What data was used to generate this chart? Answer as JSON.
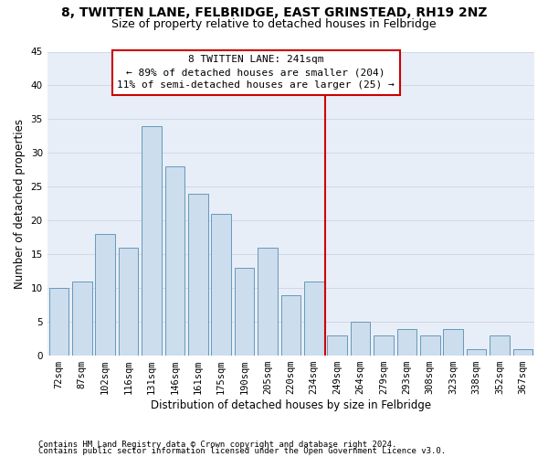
{
  "title1": "8, TWITTEN LANE, FELBRIDGE, EAST GRINSTEAD, RH19 2NZ",
  "title2": "Size of property relative to detached houses in Felbridge",
  "xlabel": "Distribution of detached houses by size in Felbridge",
  "ylabel": "Number of detached properties",
  "categories": [
    "72sqm",
    "87sqm",
    "102sqm",
    "116sqm",
    "131sqm",
    "146sqm",
    "161sqm",
    "175sqm",
    "190sqm",
    "205sqm",
    "220sqm",
    "234sqm",
    "249sqm",
    "264sqm",
    "279sqm",
    "293sqm",
    "308sqm",
    "323sqm",
    "338sqm",
    "352sqm",
    "367sqm"
  ],
  "values": [
    10,
    11,
    18,
    16,
    34,
    28,
    24,
    21,
    13,
    16,
    9,
    11,
    3,
    5,
    3,
    4,
    3,
    4,
    1,
    3,
    1
  ],
  "bar_color": "#ccdded",
  "bar_edge_color": "#6699bb",
  "vline_x": 11.5,
  "vline_color": "#cc0000",
  "annotation_text": "8 TWITTEN LANE: 241sqm\n← 89% of detached houses are smaller (204)\n11% of semi-detached houses are larger (25) →",
  "annotation_box_edge_color": "#cc0000",
  "annotation_box_face_color": "#ffffff",
  "grid_color": "#d0d8e8",
  "plot_bg_color": "#e8eef8",
  "ylim": [
    0,
    45
  ],
  "yticks": [
    0,
    5,
    10,
    15,
    20,
    25,
    30,
    35,
    40,
    45
  ],
  "title_fontsize": 10,
  "subtitle_fontsize": 9,
  "ylabel_fontsize": 8.5,
  "xlabel_fontsize": 8.5,
  "tick_fontsize": 7.5,
  "annot_fontsize": 8,
  "footer_fontsize": 6.5,
  "footer1": "Contains HM Land Registry data © Crown copyright and database right 2024.",
  "footer2": "Contains public sector information licensed under the Open Government Licence v3.0."
}
